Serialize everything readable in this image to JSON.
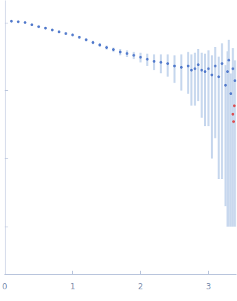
{
  "chart_data": {
    "type": "scatter",
    "log": "y",
    "tick_labels": "x",
    "grid": false,
    "xlim": [
      0,
      3.41
    ],
    "xticks": [
      0,
      1,
      2,
      3
    ],
    "ylim": [
      0.0002,
      2.1
    ],
    "yticks": [
      0.001,
      0.01,
      0.1,
      1
    ],
    "series": [
      {
        "color": "#3a66c4",
        "error_color": "#c8d8ee",
        "marker": "circle",
        "x": [
          0.1,
          0.2,
          0.3,
          0.4,
          0.5,
          0.6,
          0.7,
          0.8,
          0.9,
          1.0,
          1.1,
          1.2,
          1.3,
          1.4,
          1.5,
          1.6,
          1.7,
          1.8,
          1.9,
          2.0,
          2.1,
          2.2,
          2.3,
          2.4,
          2.5,
          2.6,
          2.7,
          2.75,
          2.8,
          2.85,
          2.9,
          2.95,
          3.0,
          3.05,
          3.1,
          3.15,
          3.2,
          3.25,
          3.28,
          3.3,
          3.33,
          3.36,
          3.39
        ],
        "values": [
          1.05,
          1.03,
          1.0,
          0.93,
          0.87,
          0.83,
          0.78,
          0.73,
          0.69,
          0.66,
          0.61,
          0.56,
          0.51,
          0.47,
          0.43,
          0.4,
          0.37,
          0.35,
          0.33,
          0.31,
          0.29,
          0.27,
          0.26,
          0.25,
          0.23,
          0.22,
          0.23,
          0.2,
          0.21,
          0.24,
          0.2,
          0.19,
          0.21,
          0.17,
          0.23,
          0.16,
          0.25,
          0.12,
          0.19,
          0.28,
          0.09,
          0.21,
          0.14
        ],
        "errors": [
          0.03,
          0.03,
          0.03,
          0.03,
          0.03,
          0.03,
          0.03,
          0.03,
          0.03,
          0.03,
          0.03,
          0.03,
          0.03,
          0.03,
          0.03,
          0.03,
          0.04,
          0.04,
          0.04,
          0.05,
          0.06,
          0.07,
          0.08,
          0.09,
          0.1,
          0.12,
          0.14,
          0.14,
          0.15,
          0.17,
          0.16,
          0.16,
          0.18,
          0.16,
          0.21,
          0.155,
          0.245,
          0.118,
          0.189,
          0.279,
          0.089,
          0.209,
          0.139
        ]
      },
      {
        "color": "#e03030",
        "marker": "circle",
        "x": [
          3.36,
          3.37,
          3.38
        ],
        "values": [
          0.045,
          0.035,
          0.06
        ]
      }
    ]
  }
}
